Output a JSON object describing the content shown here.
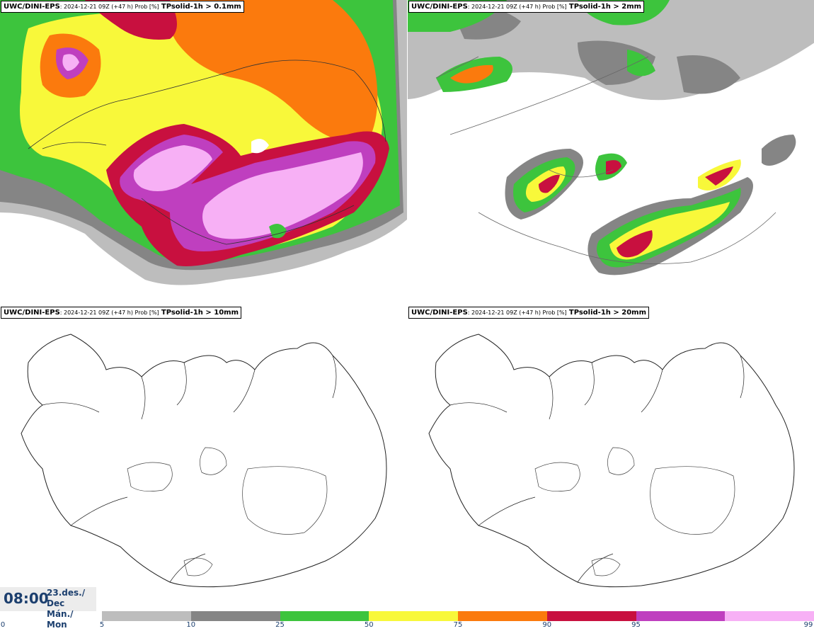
{
  "panels": [
    {
      "model": "UWC/DINI-EPS",
      "meta": ": 2024-12-21 09Z (+47 h) Prob [%]",
      "variable": "TPsolid-1h > 0.1mm"
    },
    {
      "model": "UWC/DINI-EPS",
      "meta": ": 2024-12-21 09Z (+47 h) Prob [%]",
      "variable": "TPsolid-1h > 2mm"
    },
    {
      "model": "UWC/DINI-EPS",
      "meta": ": 2024-12-21 09Z (+47 h) Prob [%]",
      "variable": "TPsolid-1h > 10mm"
    },
    {
      "model": "UWC/DINI-EPS",
      "meta": ": 2024-12-21 09Z (+47 h) Prob [%]",
      "variable": "TPsolid-1h > 20mm"
    }
  ],
  "valid": {
    "time": "08:00",
    "date_line1": "23.des./ Dec",
    "date_line2": "Mán./ Mon"
  },
  "scale": {
    "ticks": [
      "0",
      "5",
      "10",
      "25",
      "50",
      "75",
      "90",
      "95",
      "99"
    ],
    "colors": [
      "#bdbdbd",
      "#858585",
      "#3dc43d",
      "#f8f83a",
      "#fb7a0d",
      "#c8103f",
      "#bf3fbf",
      "#f7b0f5"
    ]
  }
}
